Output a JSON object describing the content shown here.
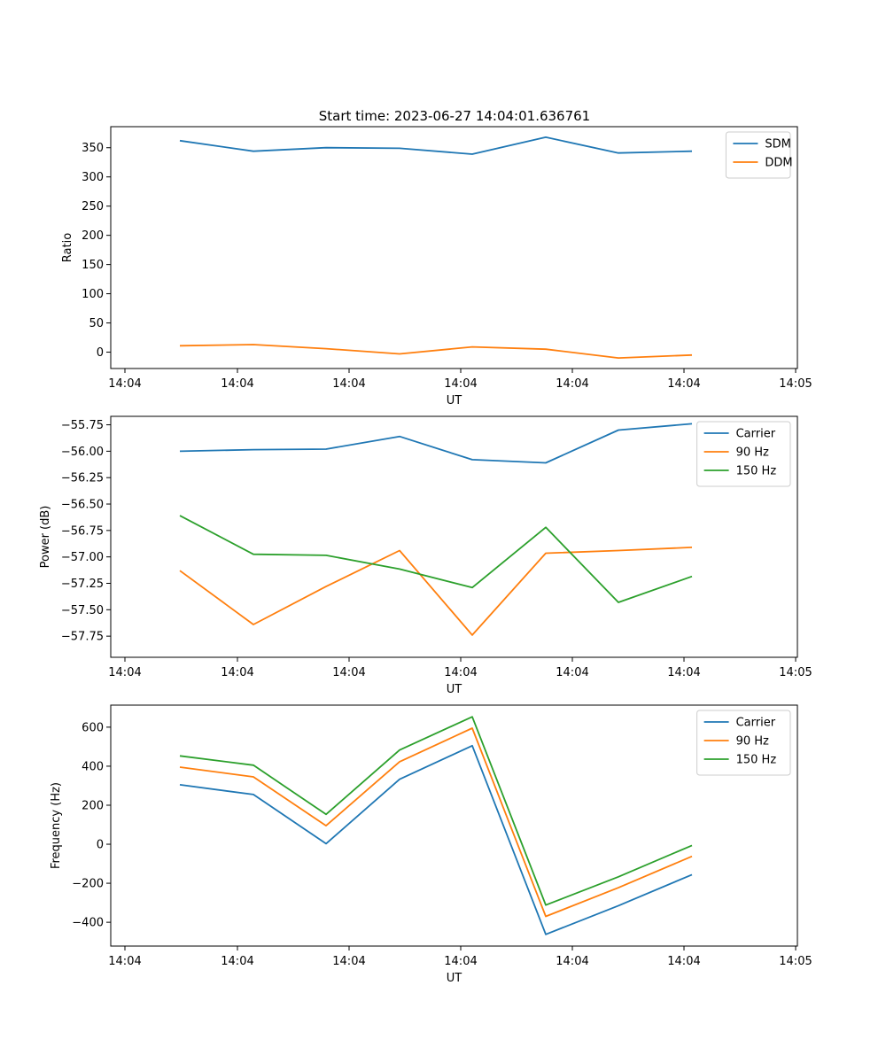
{
  "figure": {
    "title": "Start time: 2023-06-27 14:04:01.636761"
  },
  "chart_data": [
    {
      "type": "line",
      "xlabel": "UT",
      "ylabel": "Ratio",
      "x_tick_labels": [
        "14:04",
        "14:04",
        "14:04",
        "14:04",
        "14:04",
        "14:04",
        "14:05"
      ],
      "y_ticks": [
        0,
        50,
        100,
        150,
        200,
        250,
        300,
        350
      ],
      "y_tick_labels": [
        "0",
        "50",
        "100",
        "150",
        "200",
        "250",
        "300",
        "350"
      ],
      "ylim": [
        -28,
        386
      ],
      "legend_position": "upper right",
      "grid": false,
      "series": [
        {
          "name": "SDM",
          "color": "#1f77b4",
          "values": [
            362,
            344,
            350,
            349,
            339,
            368,
            341,
            344
          ]
        },
        {
          "name": "DDM",
          "color": "#ff7f0e",
          "values": [
            11,
            13,
            6,
            -3,
            9,
            5,
            -10,
            -5
          ]
        }
      ]
    },
    {
      "type": "line",
      "xlabel": "UT",
      "ylabel": "Power (dB)",
      "x_tick_labels": [
        "14:04",
        "14:04",
        "14:04",
        "14:04",
        "14:04",
        "14:04",
        "14:05"
      ],
      "y_ticks": [
        -57.75,
        -57.5,
        -57.25,
        -57.0,
        -56.75,
        -56.5,
        -56.25,
        -56.0,
        -55.75
      ],
      "y_tick_labels": [
        "−57.75",
        "−57.50",
        "−57.25",
        "−57.00",
        "−56.75",
        "−56.50",
        "−56.25",
        "−56.00",
        "−55.75"
      ],
      "ylim": [
        -57.95,
        -55.67
      ],
      "legend_position": "upper right",
      "grid": false,
      "series": [
        {
          "name": "Carrier",
          "color": "#1f77b4",
          "values": [
            -56.0,
            -55.985,
            -55.98,
            -55.86,
            -56.08,
            -56.11,
            -55.8,
            -55.74
          ]
        },
        {
          "name": "90 Hz",
          "color": "#ff7f0e",
          "values": [
            -57.13,
            -57.64,
            -57.28,
            -56.94,
            -57.74,
            -56.965,
            -56.94,
            -56.91
          ]
        },
        {
          "name": "150 Hz",
          "color": "#2ca02c",
          "values": [
            -56.61,
            -56.975,
            -56.985,
            -57.115,
            -57.29,
            -56.72,
            -57.43,
            -57.185
          ]
        }
      ]
    },
    {
      "type": "line",
      "xlabel": "UT",
      "ylabel": "Frequency (Hz)",
      "x_tick_labels": [
        "14:04",
        "14:04",
        "14:04",
        "14:04",
        "14:04",
        "14:04",
        "14:05"
      ],
      "y_ticks": [
        -400,
        -200,
        0,
        200,
        400,
        600
      ],
      "y_tick_labels": [
        "−400",
        "−200",
        "0",
        "200",
        "400",
        "600"
      ],
      "ylim": [
        -522,
        713
      ],
      "legend_position": "upper right",
      "grid": false,
      "series": [
        {
          "name": "Carrier",
          "color": "#1f77b4",
          "values": [
            305,
            255,
            3,
            333,
            505,
            -462,
            -315,
            -156
          ]
        },
        {
          "name": "90 Hz",
          "color": "#ff7f0e",
          "values": [
            395,
            345,
            95,
            423,
            595,
            -370,
            -223,
            -62
          ]
        },
        {
          "name": "150 Hz",
          "color": "#2ca02c",
          "values": [
            453,
            405,
            153,
            483,
            653,
            -312,
            -167,
            -6
          ]
        }
      ]
    }
  ]
}
